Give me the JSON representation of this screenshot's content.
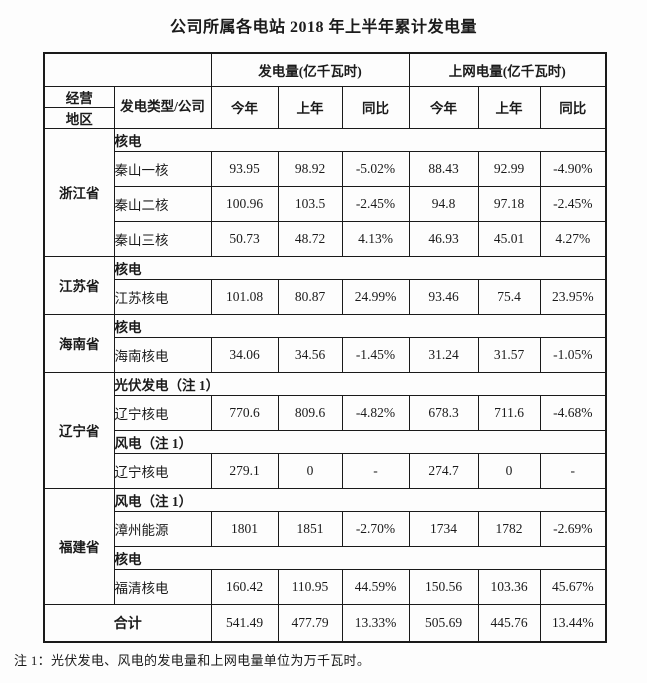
{
  "page": {
    "title": "公司所属各电站 2018 年上半年累计发电量",
    "footnote": "注 1：光伏发电、风电的发电量和上网电量单位为万千瓦时。"
  },
  "table": {
    "header": {
      "region_line1": "经营",
      "region_line2": "地区",
      "type_company": "发电类型/公司",
      "generation_group": "发电量(亿千瓦时)",
      "ongrid_group": "上网电量(亿千瓦时)",
      "col_this_year": "今年",
      "col_last_year": "上年",
      "col_yoy": "同比"
    },
    "sections": [
      {
        "region": "浙江省",
        "groups": [
          {
            "band": "核电",
            "rows": [
              {
                "company": "秦山一核",
                "values": [
                  "93.95",
                  "98.92",
                  "-5.02%",
                  "88.43",
                  "92.99",
                  "-4.90%"
                ]
              },
              {
                "company": "秦山二核",
                "values": [
                  "100.96",
                  "103.5",
                  "-2.45%",
                  "94.8",
                  "97.18",
                  "-2.45%"
                ]
              },
              {
                "company": "秦山三核",
                "values": [
                  "50.73",
                  "48.72",
                  "4.13%",
                  "46.93",
                  "45.01",
                  "4.27%"
                ]
              }
            ]
          }
        ]
      },
      {
        "region": "江苏省",
        "groups": [
          {
            "band": "核电",
            "rows": [
              {
                "company": "江苏核电",
                "values": [
                  "101.08",
                  "80.87",
                  "24.99%",
                  "93.46",
                  "75.4",
                  "23.95%"
                ]
              }
            ]
          }
        ]
      },
      {
        "region": "海南省",
        "groups": [
          {
            "band": "核电",
            "rows": [
              {
                "company": "海南核电",
                "values": [
                  "34.06",
                  "34.56",
                  "-1.45%",
                  "31.24",
                  "31.57",
                  "-1.05%"
                ]
              }
            ]
          }
        ]
      },
      {
        "region": "辽宁省",
        "groups": [
          {
            "band": "光伏发电（注 1）",
            "rows": [
              {
                "company": "辽宁核电",
                "values": [
                  "770.6",
                  "809.6",
                  "-4.82%",
                  "678.3",
                  "711.6",
                  "-4.68%"
                ]
              }
            ]
          },
          {
            "band": "风电（注 1）",
            "rows": [
              {
                "company": "辽宁核电",
                "values": [
                  "279.1",
                  "0",
                  "-",
                  "274.7",
                  "0",
                  "-"
                ]
              }
            ]
          }
        ]
      },
      {
        "region": "福建省",
        "groups": [
          {
            "band": "风电（注 1）",
            "rows": [
              {
                "company": "漳州能源",
                "values": [
                  "1801",
                  "1851",
                  "-2.70%",
                  "1734",
                  "1782",
                  "-2.69%"
                ]
              }
            ]
          },
          {
            "band": "核电",
            "rows": [
              {
                "company": "福清核电",
                "values": [
                  "160.42",
                  "110.95",
                  "44.59%",
                  "150.56",
                  "103.36",
                  "45.67%"
                ]
              }
            ]
          }
        ]
      }
    ],
    "total": {
      "label": "合计",
      "values": [
        "541.49",
        "477.79",
        "13.33%",
        "505.69",
        "445.76",
        "13.44%"
      ]
    }
  }
}
